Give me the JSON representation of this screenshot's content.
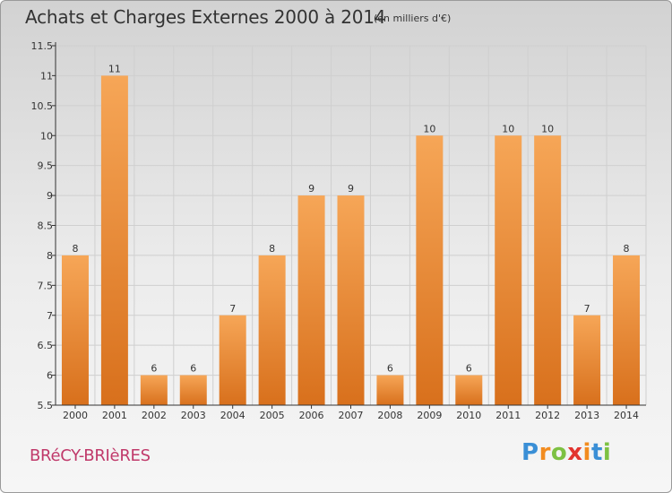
{
  "header": {
    "title": "Achats et Charges Externes 2000 à 2014",
    "subtitle": "(en milliers d'€)"
  },
  "footer": {
    "town": "BRéCY-BRIèRES",
    "logo": "Proxiti"
  },
  "colors": {
    "bar_top": "#f6a657",
    "bar_bottom": "#d8701c",
    "grid": "#cfcfcf",
    "axis": "#333333",
    "text": "#333333",
    "town": "#c0396a"
  },
  "chart_data": {
    "type": "bar",
    "title": "Achats et Charges Externes 2000 à 2014",
    "subtitle": "(en milliers d'€)",
    "xlabel": "",
    "ylabel": "",
    "categories": [
      "2000",
      "2001",
      "2002",
      "2003",
      "2004",
      "2005",
      "2006",
      "2007",
      "2008",
      "2009",
      "2010",
      "2011",
      "2012",
      "2013",
      "2014"
    ],
    "values": [
      8,
      11,
      6,
      6,
      7,
      8,
      9,
      9,
      6,
      10,
      6,
      10,
      10,
      7,
      8
    ],
    "value_labels": [
      "8",
      "11",
      "6",
      "6",
      "7",
      "8",
      "9",
      "9",
      "6",
      "10",
      "6",
      "10",
      "10",
      "7",
      "8"
    ],
    "ylim": [
      5.5,
      11.5
    ],
    "yticks": [
      5.5,
      6,
      6.5,
      7,
      7.5,
      8,
      8.5,
      9,
      9.5,
      10,
      10.5,
      11,
      11.5
    ],
    "ytick_labels": [
      "5.5",
      "6",
      "6.5",
      "7",
      "7.5",
      "8",
      "8.5",
      "9",
      "9.5",
      "10",
      "10.5",
      "11",
      "11.5"
    ],
    "grid": true,
    "legend": "none"
  }
}
